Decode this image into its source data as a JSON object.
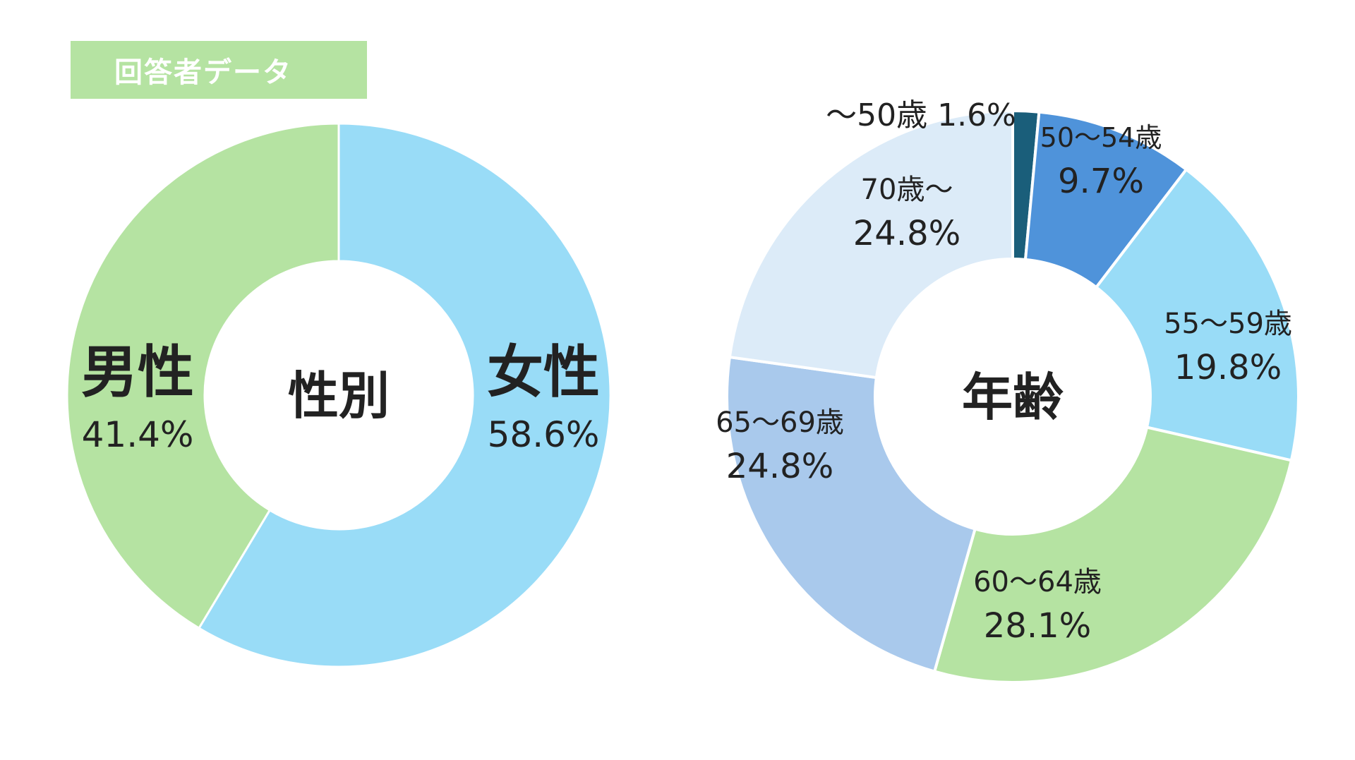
{
  "header": {
    "tag": "回答者データ",
    "tag_color": "#b5e3a2"
  },
  "chart_data": [
    {
      "type": "pie",
      "center_label": "性別",
      "slices": [
        {
          "label": "女性",
          "value": 58.6,
          "value_label": "58.6%",
          "color": "#99dcf7"
        },
        {
          "label": "男性",
          "value": 41.4,
          "value_label": "41.4%",
          "color": "#b5e3a2"
        }
      ]
    },
    {
      "type": "pie",
      "center_label": "年齢",
      "slices": [
        {
          "label": "～50歳",
          "value": 1.6,
          "value_label": "1.6%",
          "color": "#1a5e7a"
        },
        {
          "label": "50～54歳",
          "value": 9.7,
          "value_label": "9.7%",
          "color": "#4f93da"
        },
        {
          "label": "55～59歳",
          "value": 19.8,
          "value_label": "19.8%",
          "color": "#99dcf7"
        },
        {
          "label": "60～64歳",
          "value": 28.1,
          "value_label": "28.1%",
          "color": "#b5e3a2"
        },
        {
          "label": "65～69歳",
          "value": 24.8,
          "value_label": "24.8%",
          "color": "#a9c9ec"
        },
        {
          "label": "70歳～",
          "value": 24.8,
          "value_label": "24.8%",
          "color": "#dcebf8"
        }
      ]
    }
  ]
}
